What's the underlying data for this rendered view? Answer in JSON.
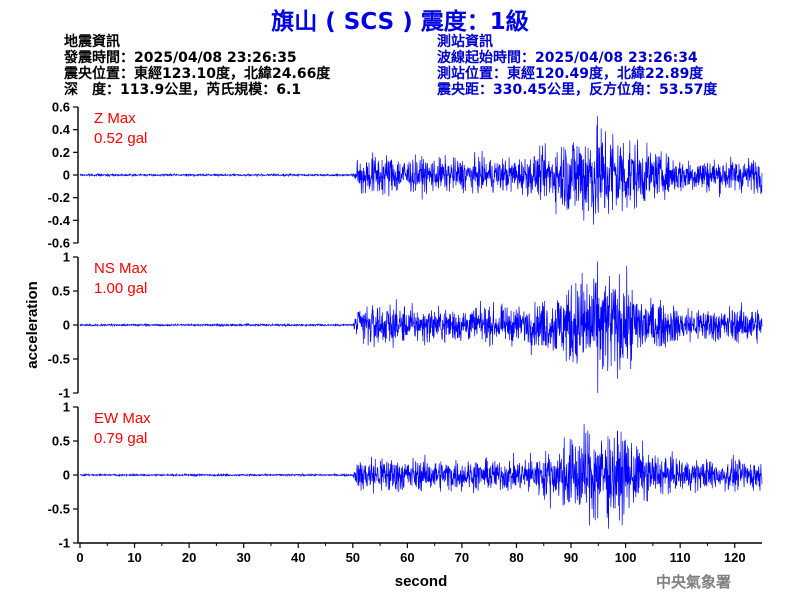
{
  "title": "旗山 ( SCS ) 震度：1級",
  "quake_info": {
    "heading": "地震資訊",
    "time": "發震時間：2025/04/08 23:26:35",
    "epicenter": "震央位置：東經123.10度，北緯24.66度",
    "depth_mag": "深　度：113.9公里，芮氏規模：6.1"
  },
  "station_info": {
    "heading": "測站資訊",
    "wave_start": "波線起始時間：2025/04/08 23:26:34",
    "location": "測站位置：東經120.49度，北緯22.89度",
    "distance": "震央距：330.45公里，反方位角：53.57度"
  },
  "footer": "中央氣象署",
  "colors": {
    "trace": "#0000ff",
    "max_label": "#ff0000",
    "title": "#0000e6"
  },
  "chart_data": {
    "type": "line",
    "xlabel": "second",
    "ylabel": "acceleration",
    "xlim": [
      0,
      125
    ],
    "x_ticks": [
      0,
      10,
      20,
      30,
      40,
      50,
      60,
      70,
      80,
      90,
      100,
      110,
      120
    ],
    "grid": false,
    "panels": [
      {
        "name": "Z Max",
        "peak": "0.52 gal",
        "peak_value": 0.52,
        "ylim": [
          -0.6,
          0.6
        ],
        "y_ticks": [
          0.6,
          0.4,
          0.2,
          0,
          -0.2,
          -0.4,
          -0.6
        ],
        "y_tick_labels": [
          "0.6",
          "0.4",
          "0.2",
          "0",
          "-0.2",
          "-0.4",
          "-0.6"
        ]
      },
      {
        "name": "NS Max",
        "peak": "1.00 gal",
        "peak_value": 1.0,
        "ylim": [
          -1,
          1
        ],
        "y_ticks": [
          1,
          0.5,
          0,
          -0.5,
          -1
        ],
        "y_tick_labels": [
          "1",
          "0.5",
          "0",
          "-0.5",
          "-1"
        ]
      },
      {
        "name": "EW Max",
        "peak": "0.79 gal",
        "peak_value": 0.79,
        "ylim": [
          -1,
          1
        ],
        "y_ticks": [
          1,
          0.5,
          0,
          -0.5,
          -1
        ],
        "y_tick_labels": [
          "1",
          "0.5",
          "0",
          "-0.5",
          "-1"
        ]
      }
    ]
  }
}
